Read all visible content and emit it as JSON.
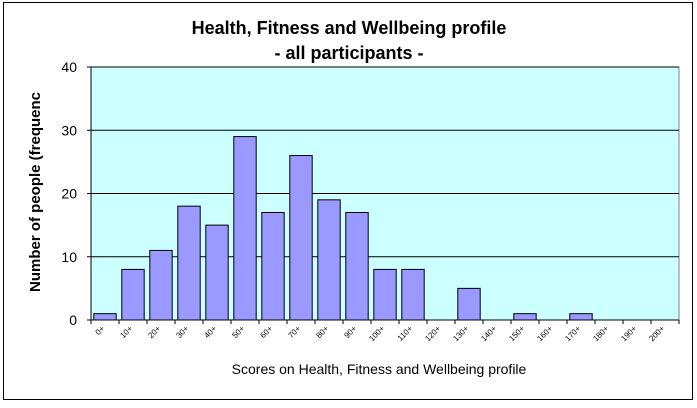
{
  "chart_data": {
    "type": "bar",
    "title": "Health, Fitness and Wellbeing profile",
    "subtitle": "- all participants -",
    "xlabel": "Scores on Health, Fitness and Wellbeing profile",
    "ylabel": "Number of people (frequenc",
    "categories": [
      "0+",
      "10+",
      "20+",
      "30+",
      "40+",
      "50+",
      "60+",
      "70+",
      "80+",
      "90+",
      "100+",
      "110+",
      "120+",
      "130+",
      "140+",
      "150+",
      "160+",
      "170+",
      "180+",
      "190+",
      "200+"
    ],
    "values": [
      1,
      8,
      11,
      18,
      15,
      29,
      17,
      26,
      19,
      17,
      8,
      8,
      0,
      5,
      0,
      1,
      0,
      1,
      0,
      0,
      0
    ],
    "ylim": [
      0,
      40
    ],
    "yticks": [
      0,
      10,
      20,
      30,
      40
    ],
    "grid": true,
    "legend": "none",
    "colors": {
      "plot_background": "#ccffff",
      "bar_fill": "#9999ff",
      "bar_stroke": "#000000",
      "gridline": "#000000"
    }
  }
}
